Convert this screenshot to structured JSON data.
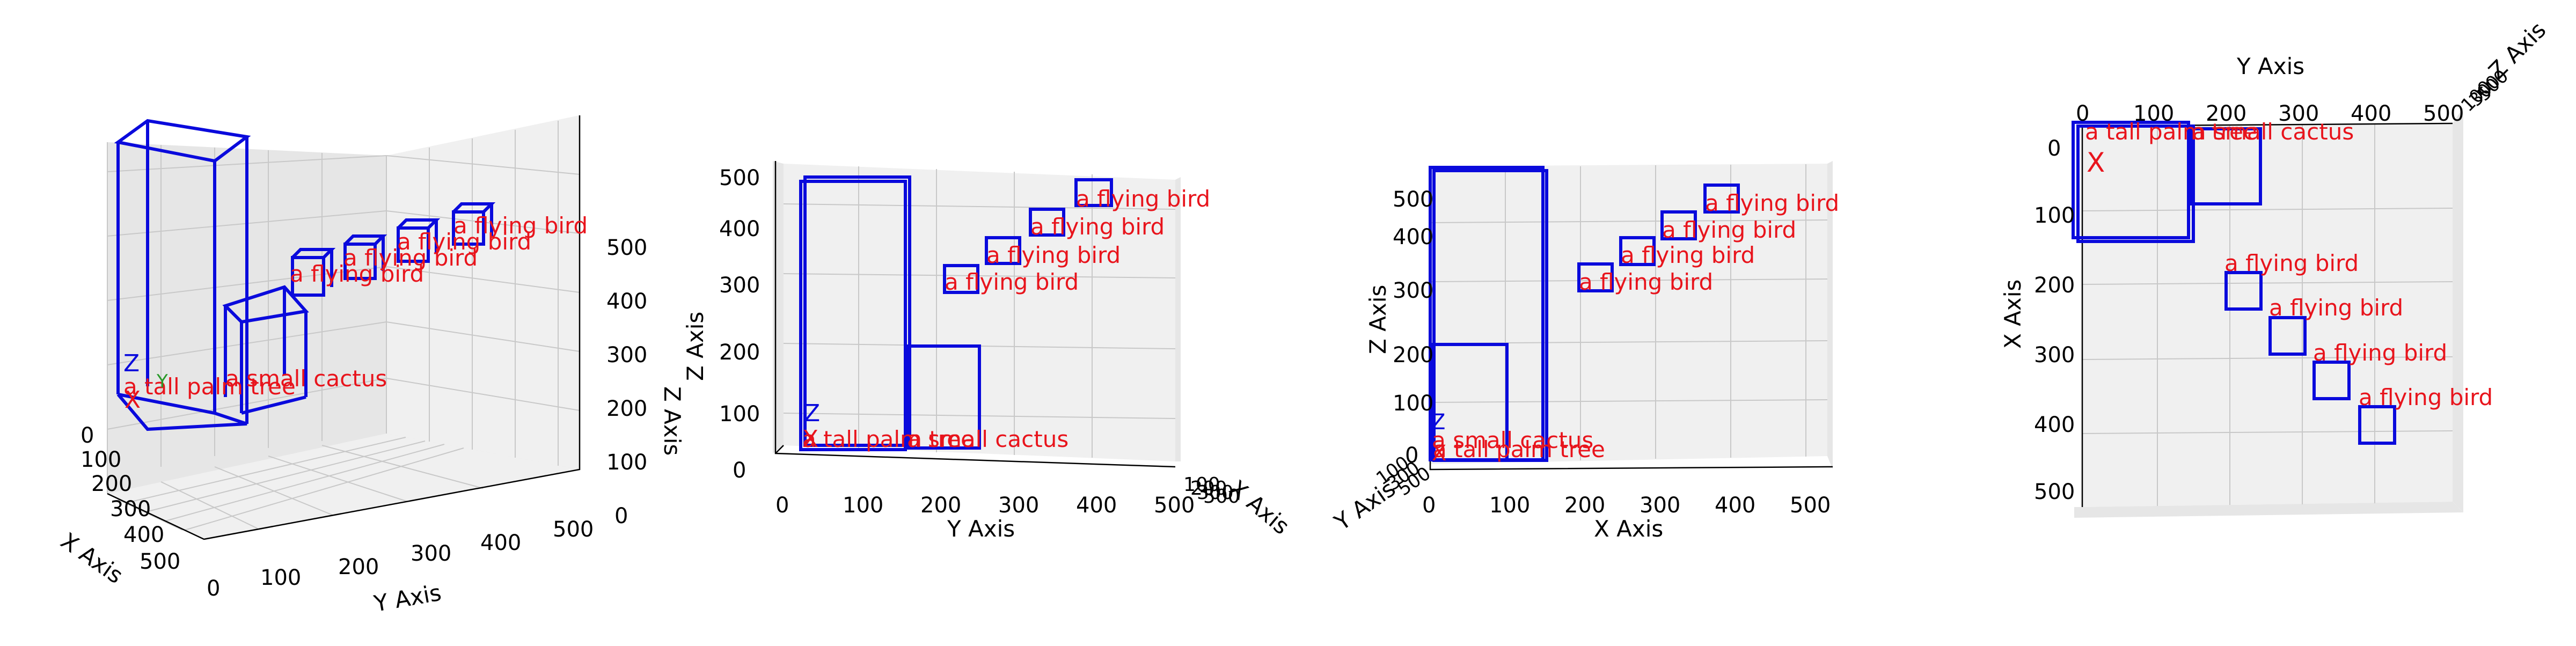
{
  "scene": {
    "objects": [
      {
        "label": "a tall palm tree",
        "x": [
          0,
          150
        ],
        "y": [
          0,
          150
        ],
        "z": [
          0,
          550
        ]
      },
      {
        "label": "a small cactus",
        "x": [
          0,
          100
        ],
        "y": [
          150,
          250
        ],
        "z": [
          0,
          200
        ]
      },
      {
        "label": "a flying bird",
        "x": [
          200,
          250
        ],
        "y": [
          200,
          250
        ],
        "z": [
          300,
          350
        ]
      },
      {
        "label": "a flying bird",
        "x": [
          280,
          330
        ],
        "y": [
          260,
          310
        ],
        "z": [
          350,
          400
        ]
      },
      {
        "label": "a flying bird",
        "x": [
          350,
          400
        ],
        "y": [
          320,
          370
        ],
        "z": [
          400,
          450
        ]
      },
      {
        "label": "a flying bird",
        "x": [
          420,
          470
        ],
        "y": [
          380,
          430
        ],
        "z": [
          450,
          500
        ]
      }
    ]
  },
  "views": [
    {
      "id": "perspective",
      "xlabel": "X Axis",
      "ylabel": "Y Axis",
      "zlabel": "Z Axis",
      "xticks": [
        "0",
        "100",
        "200",
        "300",
        "400",
        "500"
      ],
      "yticks": [
        "0",
        "100",
        "200",
        "300",
        "400",
        "500"
      ],
      "zticks": [
        "0",
        "100",
        "200",
        "300",
        "400",
        "500"
      ],
      "origin_marks": {
        "x": "X",
        "z": "Z"
      }
    },
    {
      "id": "front-yz",
      "xlabel": "Y Axis",
      "ylabel": "Z Axis",
      "depthlabel": "X Axis",
      "xticks": [
        "0",
        "100",
        "200",
        "300",
        "400",
        "500"
      ],
      "yticks": [
        "0",
        "100",
        "200",
        "300",
        "400",
        "500"
      ],
      "depthticks": [
        "0",
        "100",
        "200",
        "300",
        "400",
        "500"
      ],
      "origin_marks": {
        "x": "X",
        "z": "Z"
      }
    },
    {
      "id": "side-xz",
      "xlabel": "X Axis",
      "ylabel": "Z Axis",
      "depthlabel": "Y Axis",
      "xticks": [
        "0",
        "100",
        "200",
        "300",
        "400",
        "500"
      ],
      "yticks": [
        "0",
        "100",
        "200",
        "300",
        "400",
        "500"
      ],
      "depthticks": [
        "0",
        "100",
        "200",
        "300",
        "400",
        "500"
      ],
      "origin_marks": {
        "x": "X",
        "z": "Z"
      }
    },
    {
      "id": "top-xy",
      "xlabel": "Y Axis",
      "ylabel": "X Axis",
      "depthlabel": "Z Axis",
      "xticks": [
        "0",
        "100",
        "200",
        "300",
        "400",
        "500"
      ],
      "yticks": [
        "0",
        "100",
        "200",
        "300",
        "400",
        "500"
      ],
      "depthticks": [
        "0",
        "100",
        "200",
        "300",
        "400",
        "500"
      ],
      "origin_marks": {
        "x": "X"
      }
    }
  ],
  "colors": {
    "box": "#0a0adc",
    "label": "#e8141c",
    "y_marker": "#2a9a2a"
  }
}
